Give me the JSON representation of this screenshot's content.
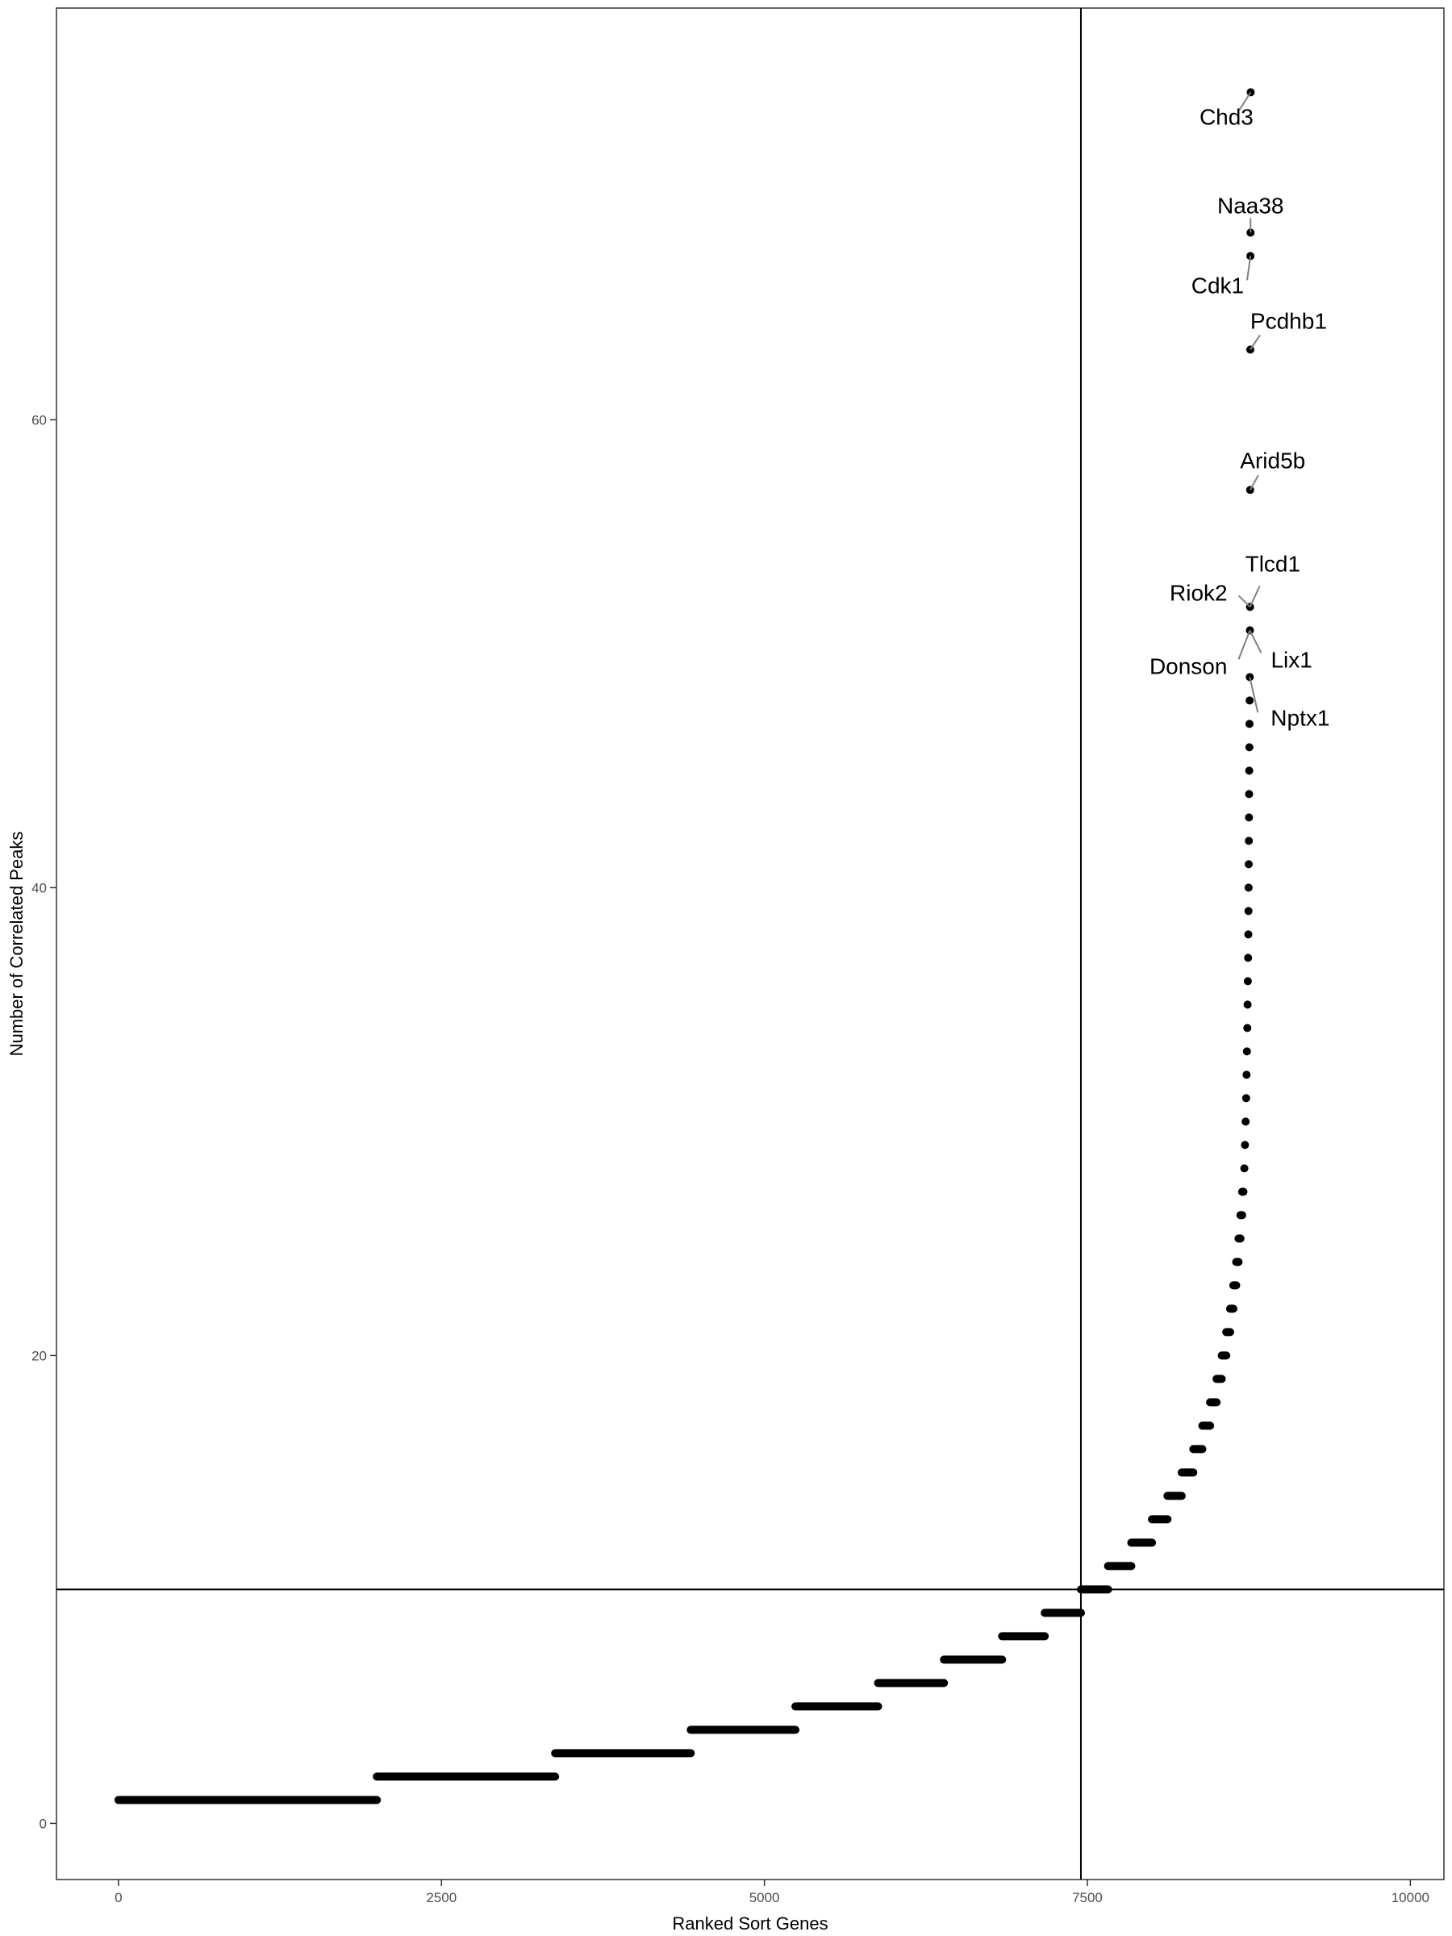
{
  "chart_data": {
    "type": "scatter",
    "xlabel": "Ranked Sort Genes",
    "ylabel": "Number of Correlated Peaks",
    "xlim": [
      -480,
      10260
    ],
    "ylim": [
      -2.4,
      77.6
    ],
    "x_ticks": [
      0,
      2500,
      5000,
      7500,
      10000
    ],
    "x_tick_labels": [
      "0",
      "2500",
      "5000",
      "7500",
      "10000"
    ],
    "y_ticks": [
      0,
      20,
      40,
      60
    ],
    "y_tick_labels": [
      "0",
      "20",
      "40",
      "60"
    ],
    "grid": false,
    "legend": "none",
    "reference_lines": {
      "vertical_x": 7450,
      "horizontal_y": 10
    },
    "segments": [
      {
        "y": 1,
        "x_start": 0,
        "x_end": 2000
      },
      {
        "y": 2,
        "x_start": 2000,
        "x_end": 3380
      },
      {
        "y": 3,
        "x_start": 3380,
        "x_end": 4430
      },
      {
        "y": 4,
        "x_start": 4430,
        "x_end": 5240
      },
      {
        "y": 5,
        "x_start": 5240,
        "x_end": 5880
      },
      {
        "y": 6,
        "x_start": 5880,
        "x_end": 6390
      },
      {
        "y": 7,
        "x_start": 6390,
        "x_end": 6840
      },
      {
        "y": 8,
        "x_start": 6840,
        "x_end": 7170
      },
      {
        "y": 9,
        "x_start": 7170,
        "x_end": 7450
      },
      {
        "y": 10,
        "x_start": 7450,
        "x_end": 7660
      },
      {
        "y": 11,
        "x_start": 7660,
        "x_end": 7840
      },
      {
        "y": 12,
        "x_start": 7840,
        "x_end": 8000
      },
      {
        "y": 13,
        "x_start": 8000,
        "x_end": 8120
      },
      {
        "y": 14,
        "x_start": 8120,
        "x_end": 8230
      },
      {
        "y": 15,
        "x_start": 8230,
        "x_end": 8320
      },
      {
        "y": 16,
        "x_start": 8320,
        "x_end": 8390
      },
      {
        "y": 17,
        "x_start": 8390,
        "x_end": 8450
      },
      {
        "y": 18,
        "x_start": 8450,
        "x_end": 8500
      },
      {
        "y": 19,
        "x_start": 8500,
        "x_end": 8540
      },
      {
        "y": 20,
        "x_start": 8540,
        "x_end": 8575
      },
      {
        "y": 21,
        "x_start": 8575,
        "x_end": 8605
      },
      {
        "y": 22,
        "x_start": 8605,
        "x_end": 8630
      },
      {
        "y": 23,
        "x_start": 8630,
        "x_end": 8652
      },
      {
        "y": 24,
        "x_start": 8652,
        "x_end": 8670
      },
      {
        "y": 25,
        "x_start": 8670,
        "x_end": 8685
      },
      {
        "y": 26,
        "x_start": 8685,
        "x_end": 8698
      },
      {
        "y": 27,
        "x_start": 8698,
        "x_end": 8708
      }
    ],
    "points": [
      {
        "x": 8715,
        "y": 28
      },
      {
        "x": 8720,
        "y": 29
      },
      {
        "x": 8725,
        "y": 30
      },
      {
        "x": 8729,
        "y": 31
      },
      {
        "x": 8732,
        "y": 32
      },
      {
        "x": 8735,
        "y": 33
      },
      {
        "x": 8738,
        "y": 34
      },
      {
        "x": 8740,
        "y": 35
      },
      {
        "x": 8742,
        "y": 36
      },
      {
        "x": 8744,
        "y": 37
      },
      {
        "x": 8746,
        "y": 38
      },
      {
        "x": 8747,
        "y": 39
      },
      {
        "x": 8748,
        "y": 40
      },
      {
        "x": 8749,
        "y": 41
      },
      {
        "x": 8750,
        "y": 42
      },
      {
        "x": 8751,
        "y": 43
      },
      {
        "x": 8752,
        "y": 44
      },
      {
        "x": 8753,
        "y": 45
      },
      {
        "x": 8754,
        "y": 46
      },
      {
        "x": 8755,
        "y": 47
      },
      {
        "x": 8756,
        "y": 48
      }
    ],
    "labeled_points": [
      {
        "gene": "Nptx1",
        "x": 8757,
        "y": 49
      },
      {
        "gene": "Donson",
        "x": 8758,
        "y": 51
      },
      {
        "gene": "Lix1",
        "x": 8758,
        "y": 51
      },
      {
        "gene": "Riok2",
        "x": 8759,
        "y": 52
      },
      {
        "gene": "Tlcd1",
        "x": 8759,
        "y": 52
      },
      {
        "gene": "Arid5b",
        "x": 8760,
        "y": 57
      },
      {
        "gene": "Pcdhb1",
        "x": 8761,
        "y": 63
      },
      {
        "gene": "Cdk1",
        "x": 8762,
        "y": 67
      },
      {
        "gene": "Naa38",
        "x": 8763,
        "y": 68
      },
      {
        "gene": "Chd3",
        "x": 8764,
        "y": 74
      }
    ]
  }
}
